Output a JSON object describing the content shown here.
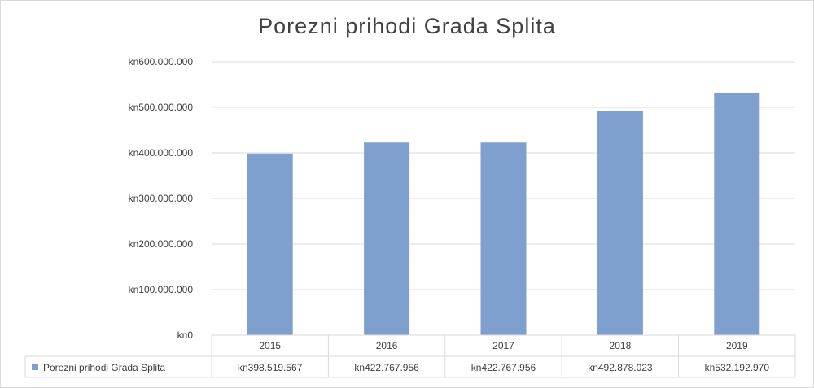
{
  "chart_data": {
    "type": "bar",
    "title": "Porezni prihodi Grada Splita",
    "categories": [
      "2015",
      "2016",
      "2017",
      "2018",
      "2019"
    ],
    "series": [
      {
        "name": "Porezni prihodi Grada Splita",
        "values": [
          398519567,
          422767956,
          422767956,
          492878023,
          532192970
        ],
        "value_labels": [
          "kn398.519.567",
          "kn422.767.956",
          "kn422.767.956",
          "kn492.878.023",
          "kn532.192.970"
        ],
        "color": "#7f9fcf"
      }
    ],
    "ylim": [
      0,
      600000000
    ],
    "yticks": [
      0,
      100000000,
      200000000,
      300000000,
      400000000,
      500000000,
      600000000
    ],
    "ytick_labels": [
      "kn0",
      "kn100.000.000",
      "kn200.000.000",
      "kn300.000.000",
      "kn400.000.000",
      "kn500.000.000",
      "kn600.000.000"
    ],
    "grid": true,
    "legend": "data-table-left",
    "gridline_color": "#d9d9d9"
  }
}
